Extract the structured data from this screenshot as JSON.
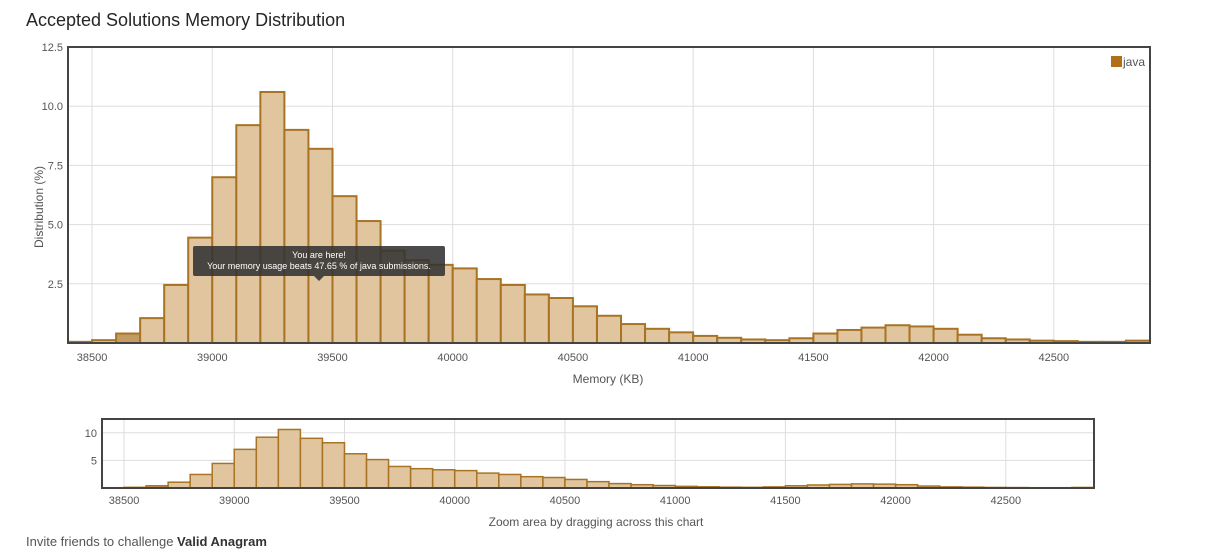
{
  "page": {
    "title": "Accepted Solutions Memory Distribution",
    "footer_prefix": "Invite friends to challenge ",
    "footer_problem": "Valid Anagram"
  },
  "tooltip": {
    "line1": "You are here!",
    "line2": "Your memory usage beats 47.65 % of java submissions."
  },
  "colors": {
    "bar_fill": "#e0c59f",
    "bar_stroke": "#a87424",
    "highlight_fill": "#c39b63",
    "legend_swatch": "#b06f18",
    "frame": "#444444",
    "grid": "#dddddd"
  },
  "chart_data": [
    {
      "type": "bar",
      "title": "Accepted Solutions Memory Distribution",
      "xlabel": "Memory (KB)",
      "ylabel": "Distribution (%)",
      "xlim": [
        38400,
        42900
      ],
      "ylim": [
        0,
        12.5
      ],
      "yticks": [
        "2.5",
        "5.0",
        "7.5",
        "10.0",
        "12.5"
      ],
      "xticks": [
        "38500",
        "39000",
        "39500",
        "40000",
        "40500",
        "41000",
        "41500",
        "42000",
        "42500"
      ],
      "grid": true,
      "legend": "top-right",
      "bin_width": 100,
      "series": [
        {
          "name": "java",
          "x": [
            38400,
            38500,
            38600,
            38700,
            38800,
            38900,
            39000,
            39100,
            39200,
            39300,
            39400,
            39500,
            39600,
            39700,
            39800,
            39900,
            40000,
            40100,
            40200,
            40300,
            40400,
            40500,
            40600,
            40700,
            40800,
            40900,
            41000,
            41100,
            41200,
            41300,
            41400,
            41500,
            41600,
            41700,
            41800,
            41900,
            42000,
            42100,
            42200,
            42300,
            42400,
            42500,
            42600,
            42700,
            42800
          ],
          "values": [
            0.05,
            0.12,
            0.4,
            1.05,
            2.45,
            4.45,
            7.0,
            9.2,
            10.6,
            9.0,
            8.2,
            6.2,
            5.15,
            3.9,
            3.5,
            3.3,
            3.15,
            2.7,
            2.45,
            2.05,
            1.9,
            1.55,
            1.15,
            0.8,
            0.6,
            0.45,
            0.3,
            0.22,
            0.15,
            0.12,
            0.2,
            0.4,
            0.55,
            0.65,
            0.75,
            0.7,
            0.6,
            0.35,
            0.2,
            0.15,
            0.1,
            0.08,
            0.05,
            0.05,
            0.1
          ]
        }
      ],
      "highlight_bin": 38600
    },
    {
      "type": "bar",
      "xlabel": "Zoom area by dragging across this chart",
      "xlim": [
        38400,
        42900
      ],
      "ylim": [
        0,
        12.5
      ],
      "yticks": [
        "5",
        "10"
      ],
      "xticks": [
        "38500",
        "39000",
        "39500",
        "40000",
        "40500",
        "41000",
        "41500",
        "42000",
        "42500"
      ],
      "grid": true
    }
  ]
}
